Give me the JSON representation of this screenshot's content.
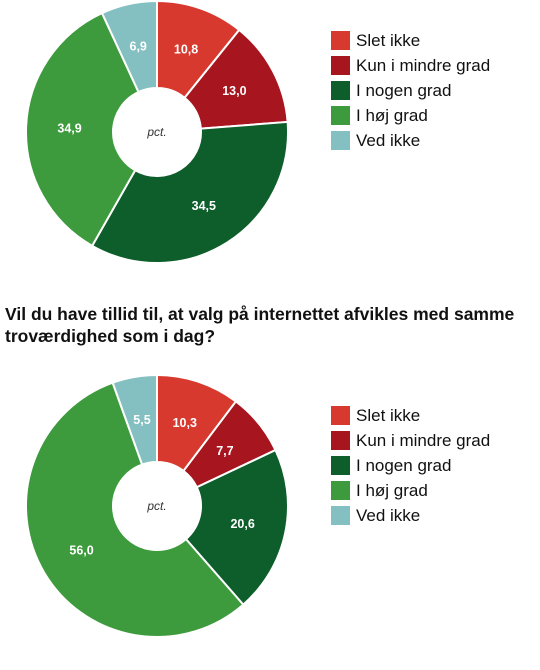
{
  "colors": [
    "#d7392e",
    "#a7161f",
    "#0e5e2b",
    "#3d9b3d",
    "#84bfc2"
  ],
  "chart_data": [
    {
      "type": "pie",
      "categories": [
        "Slet ikke",
        "Kun i mindre grad",
        "I nogen grad",
        "I høj grad",
        "Ved ikke"
      ],
      "values": [
        10.8,
        13.0,
        34.5,
        34.9,
        6.9
      ],
      "value_labels": [
        "10,8",
        "13,0",
        "34,5",
        "34,9",
        "6,9"
      ],
      "center_label": "pct.",
      "legend_position": "right"
    },
    {
      "type": "pie",
      "title": "Vil du have tillid til, at valg på internettet afvikles med samme troværdighed som i dag?",
      "categories": [
        "Slet ikke",
        "Kun i mindre grad",
        "I nogen grad",
        "I høj grad",
        "Ved ikke"
      ],
      "values": [
        10.3,
        7.7,
        20.6,
        56.0,
        5.5
      ],
      "value_labels": [
        "10,3",
        "7,7",
        "20,6",
        "56,0",
        "5,5"
      ],
      "center_label": "pct.",
      "legend_position": "right"
    }
  ]
}
